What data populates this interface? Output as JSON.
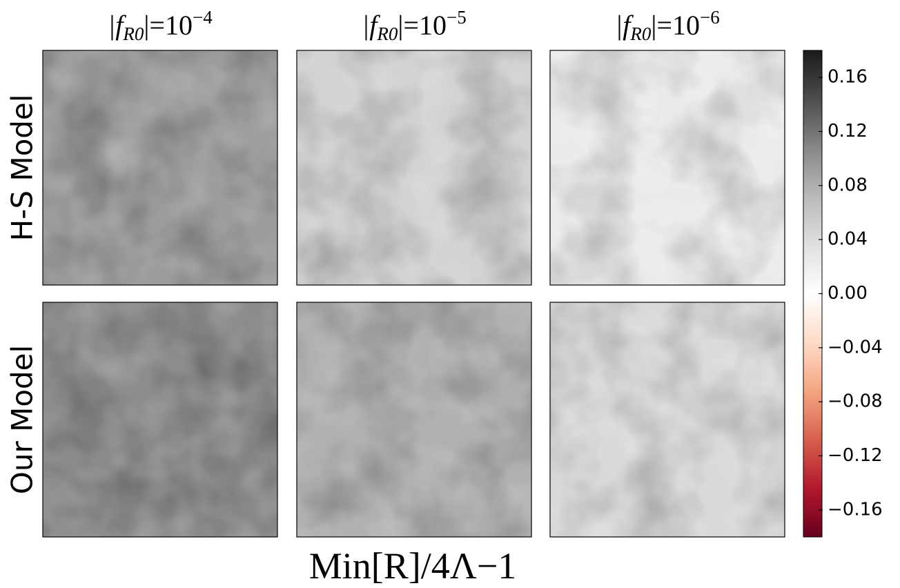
{
  "chart_data": {
    "type": "image-grid",
    "column_titles": [
      [
        "|f",
        "R0",
        "|=10",
        "−4"
      ],
      [
        "|f",
        "R0",
        "|=10",
        "−5"
      ],
      [
        "|f",
        "R0",
        "|=10",
        "−6"
      ]
    ],
    "row_labels": [
      "H-S Model",
      "Our Model"
    ],
    "panel_colors": [
      [
        "#9c9c9c",
        "#d2d2d2",
        "#ebebeb"
      ],
      [
        "#8c8c8c",
        "#b0b0b0",
        "#d9d9d9"
      ]
    ],
    "colorbar": {
      "label": "Min[R]/4Λ−1",
      "colors": [
        "#67001f",
        "#b2182b",
        "#d6604d",
        "#f4a582",
        "#fddbc7",
        "#ffffff",
        "#e0e0e0",
        "#bababa",
        "#878787",
        "#4d4d4d",
        "#1a1a1a"
      ],
      "ylim": [
        -0.18,
        0.18
      ],
      "yticks": [
        {
          "value": -0.16,
          "label": "−0.16"
        },
        {
          "value": -0.12,
          "label": "−0.12"
        },
        {
          "value": -0.08,
          "label": "−0.08"
        },
        {
          "value": -0.04,
          "label": "−0.04"
        },
        {
          "value": 0,
          "label": "0.00"
        },
        0.04,
        0.08,
        0.12,
        0.16
      ]
    }
  }
}
